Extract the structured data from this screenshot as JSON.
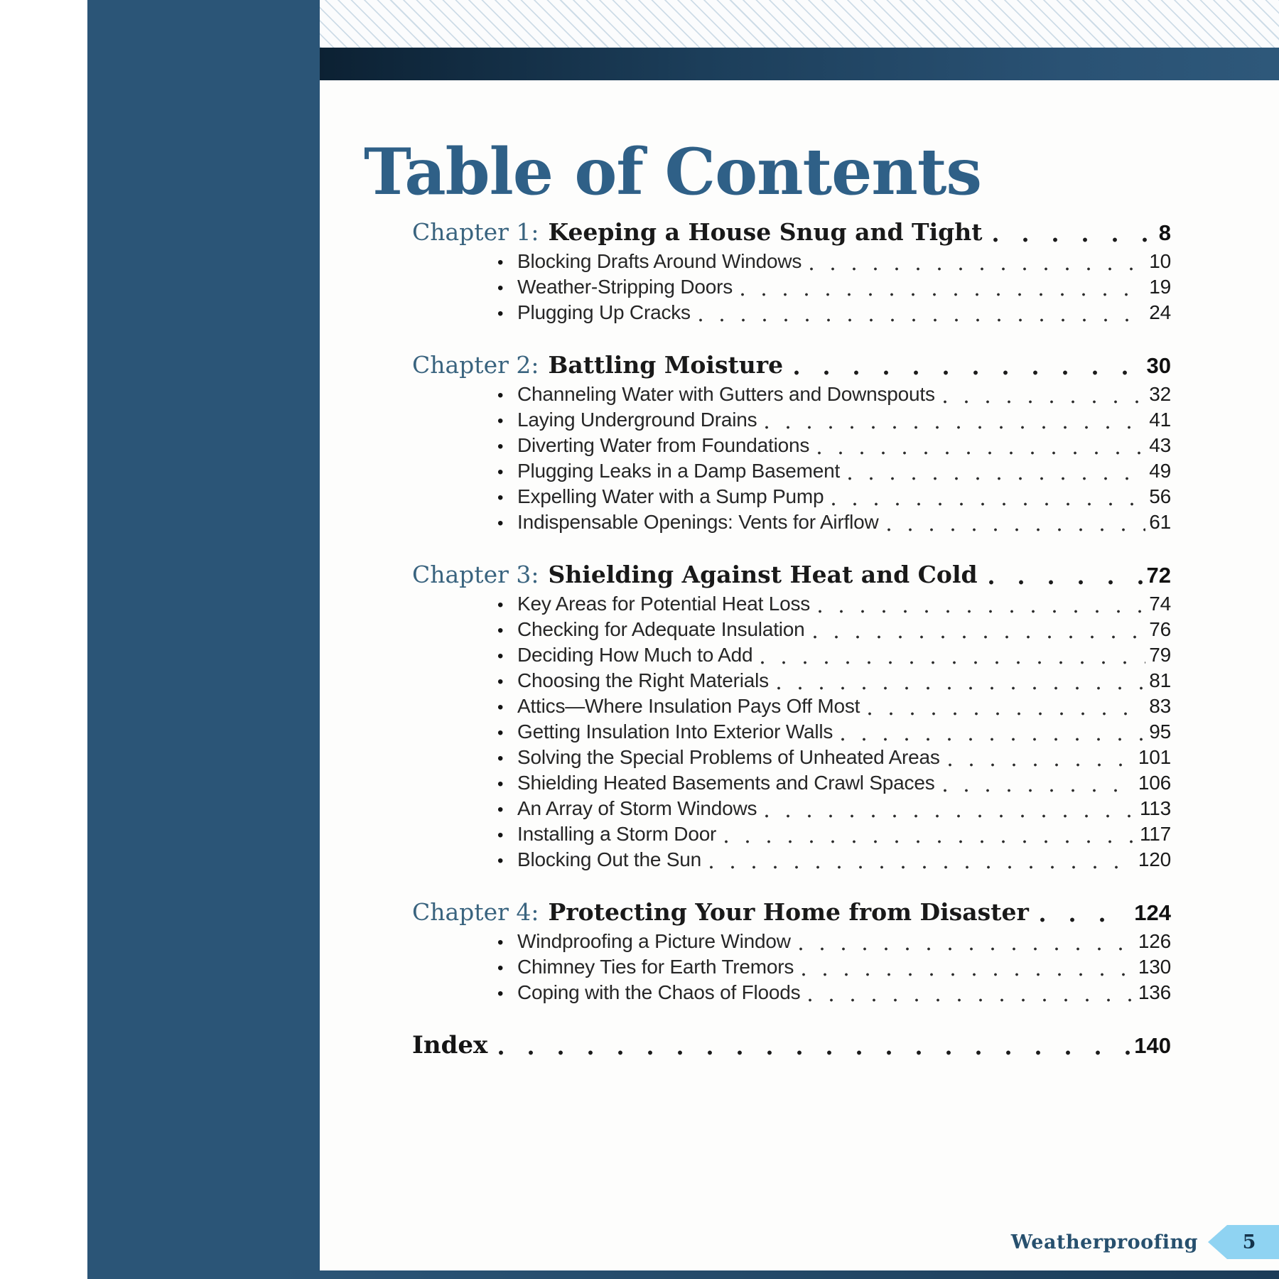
{
  "title": "Table of Contents",
  "icons": {
    "bullet": "•"
  },
  "colors": {
    "side_band": "#2b5577",
    "top_bar_dark": "#0c2133",
    "top_bar_light": "#2e587a",
    "title_blue": "#2f6087",
    "chapter_prefix_blue": "#3a647f",
    "footer_text": "#27506e",
    "page_tab_blue": "#8fd3f2"
  },
  "chapters": [
    {
      "prefix": "Chapter 1:",
      "title": "Keeping a House Snug and Tight",
      "page": "8",
      "items": [
        {
          "label": "Blocking Drafts Around Windows",
          "page": "10"
        },
        {
          "label": "Weather-Stripping Doors",
          "page": "19"
        },
        {
          "label": "Plugging Up Cracks",
          "page": "24"
        }
      ]
    },
    {
      "prefix": "Chapter 2:",
      "title": "Battling Moisture",
      "page": "30",
      "items": [
        {
          "label": "Channeling Water with Gutters and Downspouts",
          "page": "32"
        },
        {
          "label": "Laying Underground Drains",
          "page": "41"
        },
        {
          "label": "Diverting Water from Foundations",
          "page": "43"
        },
        {
          "label": "Plugging Leaks in a Damp Basement",
          "page": "49"
        },
        {
          "label": "Expelling Water with a Sump Pump",
          "page": "56"
        },
        {
          "label": "Indispensable Openings: Vents for Airflow",
          "page": "61"
        }
      ]
    },
    {
      "prefix": "Chapter 3:",
      "title": "Shielding Against Heat and Cold",
      "page": "72",
      "items": [
        {
          "label": "Key Areas for Potential Heat Loss",
          "page": "74"
        },
        {
          "label": "Checking for Adequate Insulation",
          "page": "76"
        },
        {
          "label": "Deciding How Much to Add",
          "page": "79"
        },
        {
          "label": "Choosing the Right Materials",
          "page": "81"
        },
        {
          "label": "Attics—Where Insulation Pays Off Most",
          "page": "83"
        },
        {
          "label": "Getting Insulation Into Exterior Walls",
          "page": "95"
        },
        {
          "label": "Solving the Special Problems of Unheated Areas",
          "page": "101"
        },
        {
          "label": "Shielding Heated Basements and Crawl Spaces",
          "page": "106"
        },
        {
          "label": "An Array of Storm Windows",
          "page": "113"
        },
        {
          "label": "Installing a Storm Door",
          "page": "117"
        },
        {
          "label": "Blocking Out the Sun",
          "page": "120"
        }
      ]
    },
    {
      "prefix": "Chapter 4:",
      "title": "Protecting Your Home from Disaster",
      "page": "124",
      "items": [
        {
          "label": "Windproofing a Picture Window",
          "page": "126"
        },
        {
          "label": "Chimney Ties for Earth Tremors",
          "page": "130"
        },
        {
          "label": "Coping with the Chaos of Floods",
          "page": "136"
        }
      ]
    }
  ],
  "index": {
    "label": "Index",
    "page": "140"
  },
  "footer": {
    "book_title": "Weatherproofing",
    "page_number": "5"
  }
}
